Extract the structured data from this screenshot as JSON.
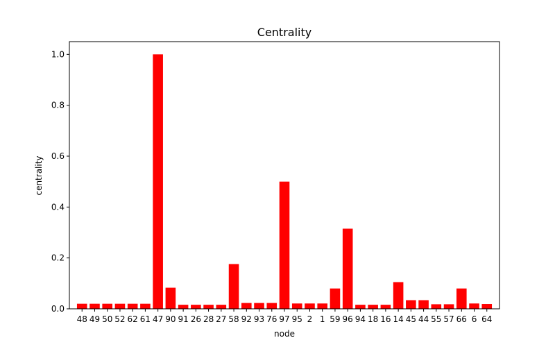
{
  "chart_data": {
    "type": "bar",
    "title": "Centrality",
    "xlabel": "node",
    "ylabel": "centrality",
    "ylim": [
      0,
      1.05
    ],
    "yticks": [
      "0.0",
      "0.2",
      "0.4",
      "0.6",
      "0.8",
      "1.0"
    ],
    "ytick_values": [
      0,
      0.2,
      0.4,
      0.6,
      0.8,
      1.0
    ],
    "grid": false,
    "bar_color": "#ff0000",
    "categories": [
      "48",
      "49",
      "50",
      "52",
      "62",
      "61",
      "47",
      "90",
      "91",
      "26",
      "28",
      "27",
      "58",
      "92",
      "93",
      "76",
      "97",
      "95",
      "2",
      "1",
      "59",
      "96",
      "94",
      "18",
      "16",
      "14",
      "45",
      "44",
      "55",
      "57",
      "66",
      "6",
      "64"
    ],
    "values": [
      0.02,
      0.02,
      0.02,
      0.02,
      0.02,
      0.02,
      1.0,
      0.083,
      0.016,
      0.016,
      0.016,
      0.016,
      0.176,
      0.023,
      0.023,
      0.023,
      0.5,
      0.021,
      0.021,
      0.021,
      0.08,
      0.315,
      0.016,
      0.016,
      0.016,
      0.105,
      0.034,
      0.034,
      0.018,
      0.018,
      0.08,
      0.021,
      0.019
    ]
  }
}
